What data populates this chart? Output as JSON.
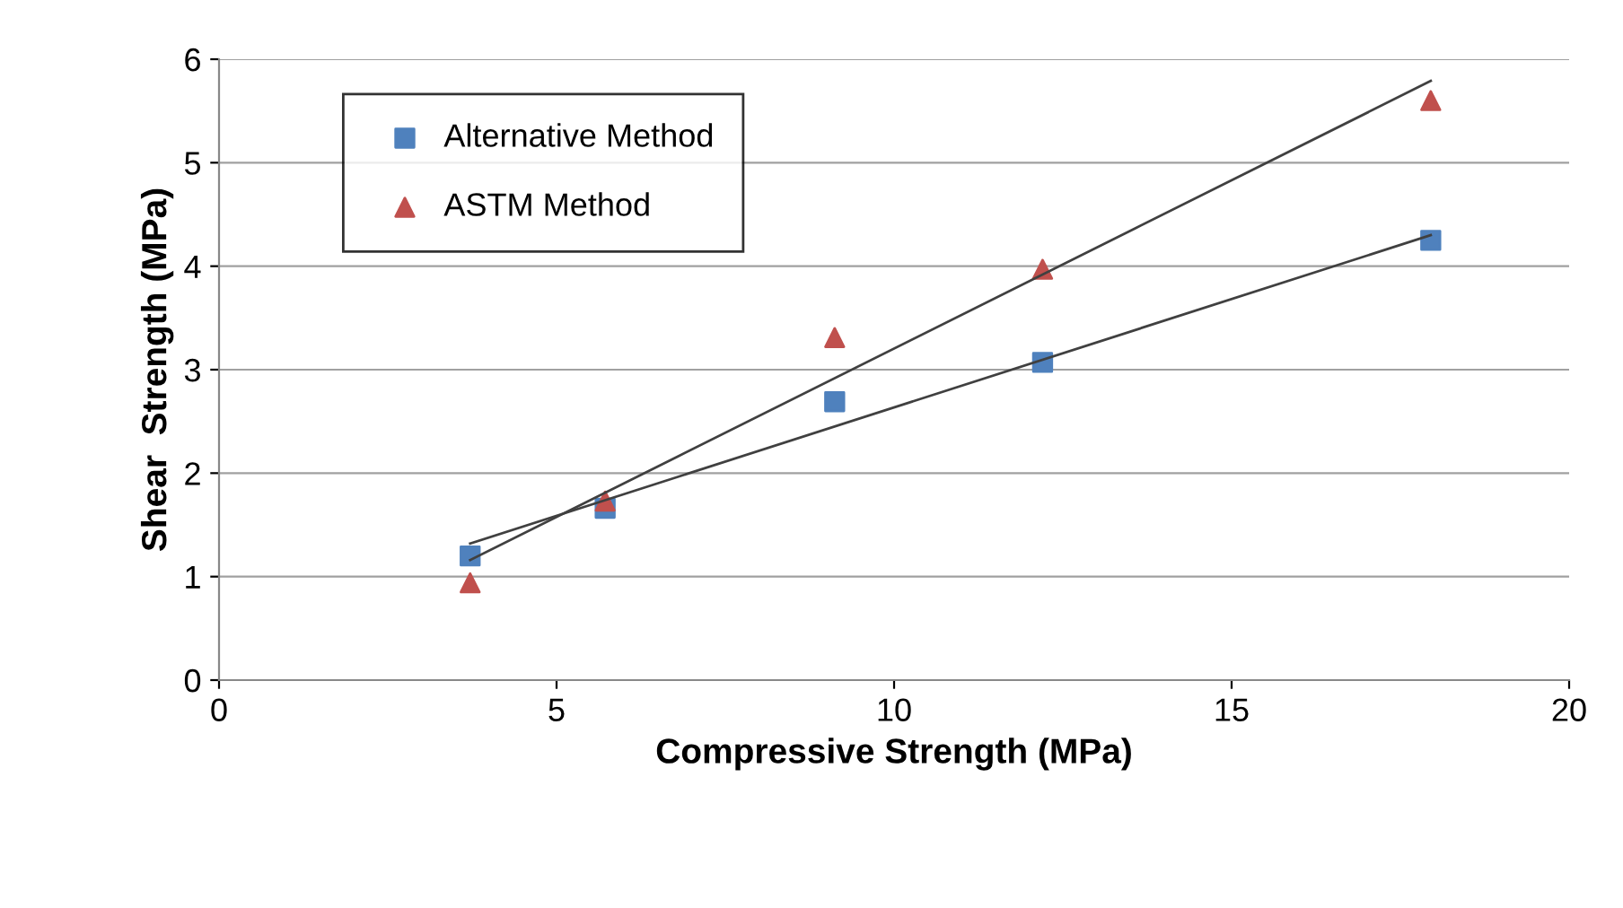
{
  "chart_data": {
    "type": "scatter",
    "xlabel": "Compressive Strength (MPa)",
    "ylabel": "Shear  Strength (MPa)",
    "xlim": [
      0,
      20
    ],
    "xticks": [
      0,
      5,
      10,
      15,
      20
    ],
    "ylim": [
      0,
      6
    ],
    "yticks": [
      0,
      1,
      2,
      3,
      4,
      5,
      6
    ],
    "grid": "y",
    "legend": "top left",
    "series": [
      {
        "name": "Alternative Method",
        "color": "#4f81bd",
        "marker": "square",
        "x": [
          3.72,
          5.72,
          9.12,
          12.2,
          17.95
        ],
        "values": [
          1.2,
          1.66,
          2.69,
          3.07,
          4.25
        ]
      },
      {
        "name": "ASTM Method",
        "color": "#c0504d",
        "marker": "triangle",
        "x": [
          3.72,
          5.72,
          9.12,
          12.2,
          17.95
        ],
        "values": [
          0.94,
          1.73,
          3.31,
          3.97,
          5.6
        ]
      },
      {
        "type": "line",
        "color": "#404040",
        "marker": "none",
        "x": [
          3.72,
          17.95
        ],
        "values": [
          1.32,
          4.3
        ]
      },
      {
        "type": "line",
        "color": "#404040",
        "marker": "none",
        "x": [
          3.72,
          17.95
        ],
        "values": [
          1.16,
          5.79
        ]
      }
    ]
  }
}
